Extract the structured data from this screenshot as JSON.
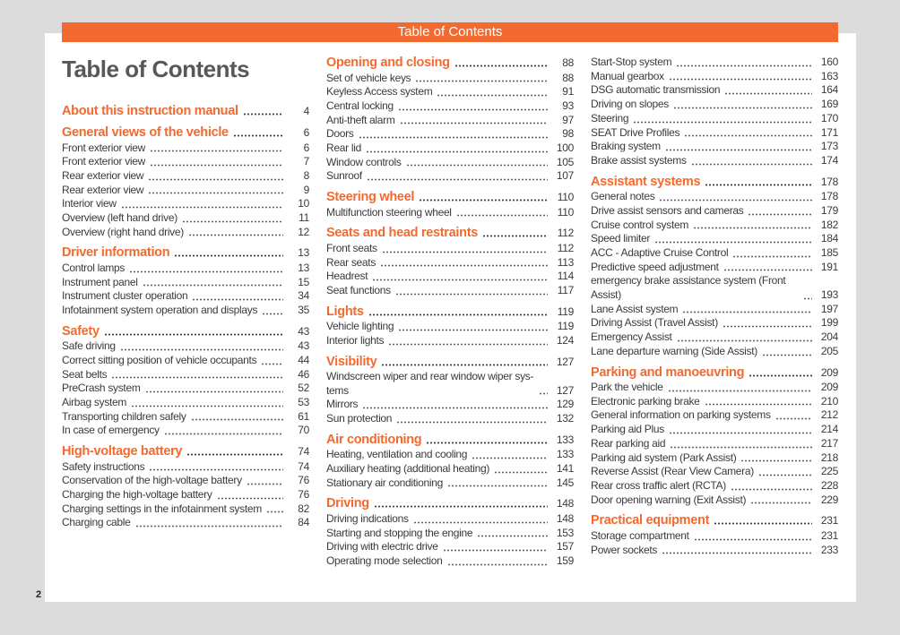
{
  "header": {
    "bar_title": "Table of Contents",
    "title": "Table of Contents"
  },
  "page_number": "2",
  "accent_color": "#f26a2f",
  "columns": [
    [
      {
        "title": "About this instruction manual",
        "page": "4",
        "items": []
      },
      {
        "title": "General views of the vehicle",
        "page": "6",
        "items": [
          {
            "label": "Front exterior view",
            "page": "6"
          },
          {
            "label": "Front exterior view",
            "page": "7"
          },
          {
            "label": "Rear exterior view",
            "page": "8"
          },
          {
            "label": "Rear exterior view",
            "page": "9"
          },
          {
            "label": "Interior view",
            "page": "10"
          },
          {
            "label": "Overview (left hand drive)",
            "page": "11"
          },
          {
            "label": "Overview (right hand drive)",
            "page": "12"
          }
        ]
      },
      {
        "title": "Driver information",
        "page": "13",
        "items": [
          {
            "label": "Control lamps",
            "page": "13"
          },
          {
            "label": "Instrument panel",
            "page": "15"
          },
          {
            "label": "Instrument cluster operation",
            "page": "34"
          },
          {
            "label": "Infotainment system operation and displays",
            "page": "35"
          }
        ]
      },
      {
        "title": "Safety",
        "page": "43",
        "items": [
          {
            "label": "Safe driving",
            "page": "43"
          },
          {
            "label": "Correct sitting position of vehicle occupants",
            "page": "44"
          },
          {
            "label": "Seat belts",
            "page": "46"
          },
          {
            "label": "PreCrash system",
            "page": "52"
          },
          {
            "label": "Airbag system",
            "page": "53"
          },
          {
            "label": "Transporting children safely",
            "page": "61"
          },
          {
            "label": "In case of emergency",
            "page": "70"
          }
        ]
      },
      {
        "title": "High-voltage battery",
        "page": "74",
        "items": [
          {
            "label": "Safety instructions",
            "page": "74"
          },
          {
            "label": "Conservation of the high-voltage battery",
            "page": "76"
          },
          {
            "label": "Charging the high-voltage battery",
            "page": "76"
          },
          {
            "label": "Charging settings in the infotainment system",
            "page": "82"
          },
          {
            "label": "Charging cable",
            "page": "84"
          }
        ]
      }
    ],
    [
      {
        "title": "Opening and closing",
        "page": "88",
        "items": [
          {
            "label": "Set of vehicle keys",
            "page": "88"
          },
          {
            "label": "Keyless Access system",
            "page": "91"
          },
          {
            "label": "Central locking",
            "page": "93"
          },
          {
            "label": "Anti-theft alarm",
            "page": "97"
          },
          {
            "label": "Doors",
            "page": "98"
          },
          {
            "label": "Rear lid",
            "page": "100"
          },
          {
            "label": "Window controls",
            "page": "105"
          },
          {
            "label": "Sunroof",
            "page": "107"
          }
        ]
      },
      {
        "title": "Steering wheel",
        "page": "110",
        "items": [
          {
            "label": "Multifunction steering wheel",
            "page": "110"
          }
        ]
      },
      {
        "title": "Seats and head restraints",
        "page": "112",
        "items": [
          {
            "label": "Front seats",
            "page": "112"
          },
          {
            "label": "Rear seats",
            "page": "113"
          },
          {
            "label": "Headrest",
            "page": "114"
          },
          {
            "label": "Seat functions",
            "page": "117"
          }
        ]
      },
      {
        "title": "Lights",
        "page": "119",
        "items": [
          {
            "label": "Vehicle lighting",
            "page": "119"
          },
          {
            "label": "Interior lights",
            "page": "124"
          }
        ]
      },
      {
        "title": "Visibility",
        "page": "127",
        "items": [
          {
            "label": "Windscreen wiper and rear window wiper sys-tems",
            "page": "127"
          },
          {
            "label": "Mirrors",
            "page": "129"
          },
          {
            "label": "Sun protection",
            "page": "132"
          }
        ]
      },
      {
        "title": "Air conditioning",
        "page": "133",
        "items": [
          {
            "label": "Heating, ventilation and cooling",
            "page": "133"
          },
          {
            "label": "Auxiliary heating (additional heating)",
            "page": "141"
          },
          {
            "label": "Stationary air conditioning",
            "page": "145"
          }
        ]
      },
      {
        "title": "Driving",
        "page": "148",
        "items": [
          {
            "label": "Driving indications",
            "page": "148"
          },
          {
            "label": "Starting and stopping the engine",
            "page": "153"
          },
          {
            "label": "Driving with electric drive",
            "page": "157"
          },
          {
            "label": "Operating mode selection",
            "page": "159"
          }
        ]
      }
    ],
    [
      {
        "title": "",
        "page": "",
        "items": [
          {
            "label": "Start-Stop system",
            "page": "160"
          },
          {
            "label": "Manual gearbox",
            "page": "163"
          },
          {
            "label": "DSG automatic transmission",
            "page": "164"
          },
          {
            "label": "Driving on slopes",
            "page": "169"
          },
          {
            "label": "Steering",
            "page": "170"
          },
          {
            "label": "SEAT Drive Profiles",
            "page": "171"
          },
          {
            "label": "Braking system",
            "page": "173"
          },
          {
            "label": "Brake assist systems",
            "page": "174"
          }
        ]
      },
      {
        "title": "Assistant systems",
        "page": "178",
        "items": [
          {
            "label": "General notes",
            "page": "178"
          },
          {
            "label": "Drive assist sensors and cameras",
            "page": "179"
          },
          {
            "label": "Cruise control system",
            "page": "182"
          },
          {
            "label": "Speed limiter",
            "page": "184"
          },
          {
            "label": "ACC - Adaptive Cruise Control",
            "page": "185"
          },
          {
            "label": "Predictive speed adjustment",
            "page": "191"
          },
          {
            "label": "emergency brake assistance system (Front Assist)",
            "page": "193"
          },
          {
            "label": "Lane Assist system",
            "page": "197"
          },
          {
            "label": "Driving Assist (Travel Assist)",
            "page": "199"
          },
          {
            "label": "Emergency Assist",
            "page": "204"
          },
          {
            "label": "Lane departure warning (Side Assist)",
            "page": "205"
          }
        ]
      },
      {
        "title": "Parking and manoeuvring",
        "page": "209",
        "items": [
          {
            "label": "Park the vehicle",
            "page": "209"
          },
          {
            "label": "Electronic parking brake",
            "page": "210"
          },
          {
            "label": "General information on parking systems",
            "page": "212"
          },
          {
            "label": "Parking aid Plus",
            "page": "214"
          },
          {
            "label": "Rear parking aid",
            "page": "217"
          },
          {
            "label": "Parking aid system (Park Assist)",
            "page": "218"
          },
          {
            "label": "Reverse Assist (Rear View Camera)",
            "page": "225"
          },
          {
            "label": "Rear cross traffic alert (RCTA)",
            "page": "228"
          },
          {
            "label": "Door opening warning (Exit Assist)",
            "page": "229"
          }
        ]
      },
      {
        "title": "Practical equipment",
        "page": "231",
        "items": [
          {
            "label": "Storage compartment",
            "page": "231"
          },
          {
            "label": "Power sockets",
            "page": "233"
          }
        ]
      }
    ]
  ]
}
